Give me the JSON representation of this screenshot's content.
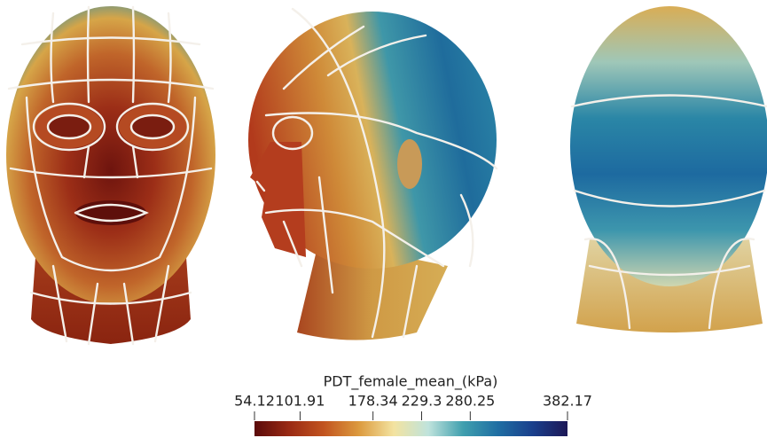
{
  "colorbar": {
    "title": "PDT_female_mean_(kPa)",
    "range": [
      54.12,
      382.17
    ],
    "ticks": [
      54.12,
      101.91,
      178.34,
      229.3,
      280.25,
      382.17
    ],
    "colormap": [
      "#5a0a0a",
      "#9a2a14",
      "#c2541f",
      "#dc9a3e",
      "#f3e3a0",
      "#bfe3dc",
      "#3f9fae",
      "#1f6ea3",
      "#1a3f8c",
      "#1c1756"
    ]
  }
}
